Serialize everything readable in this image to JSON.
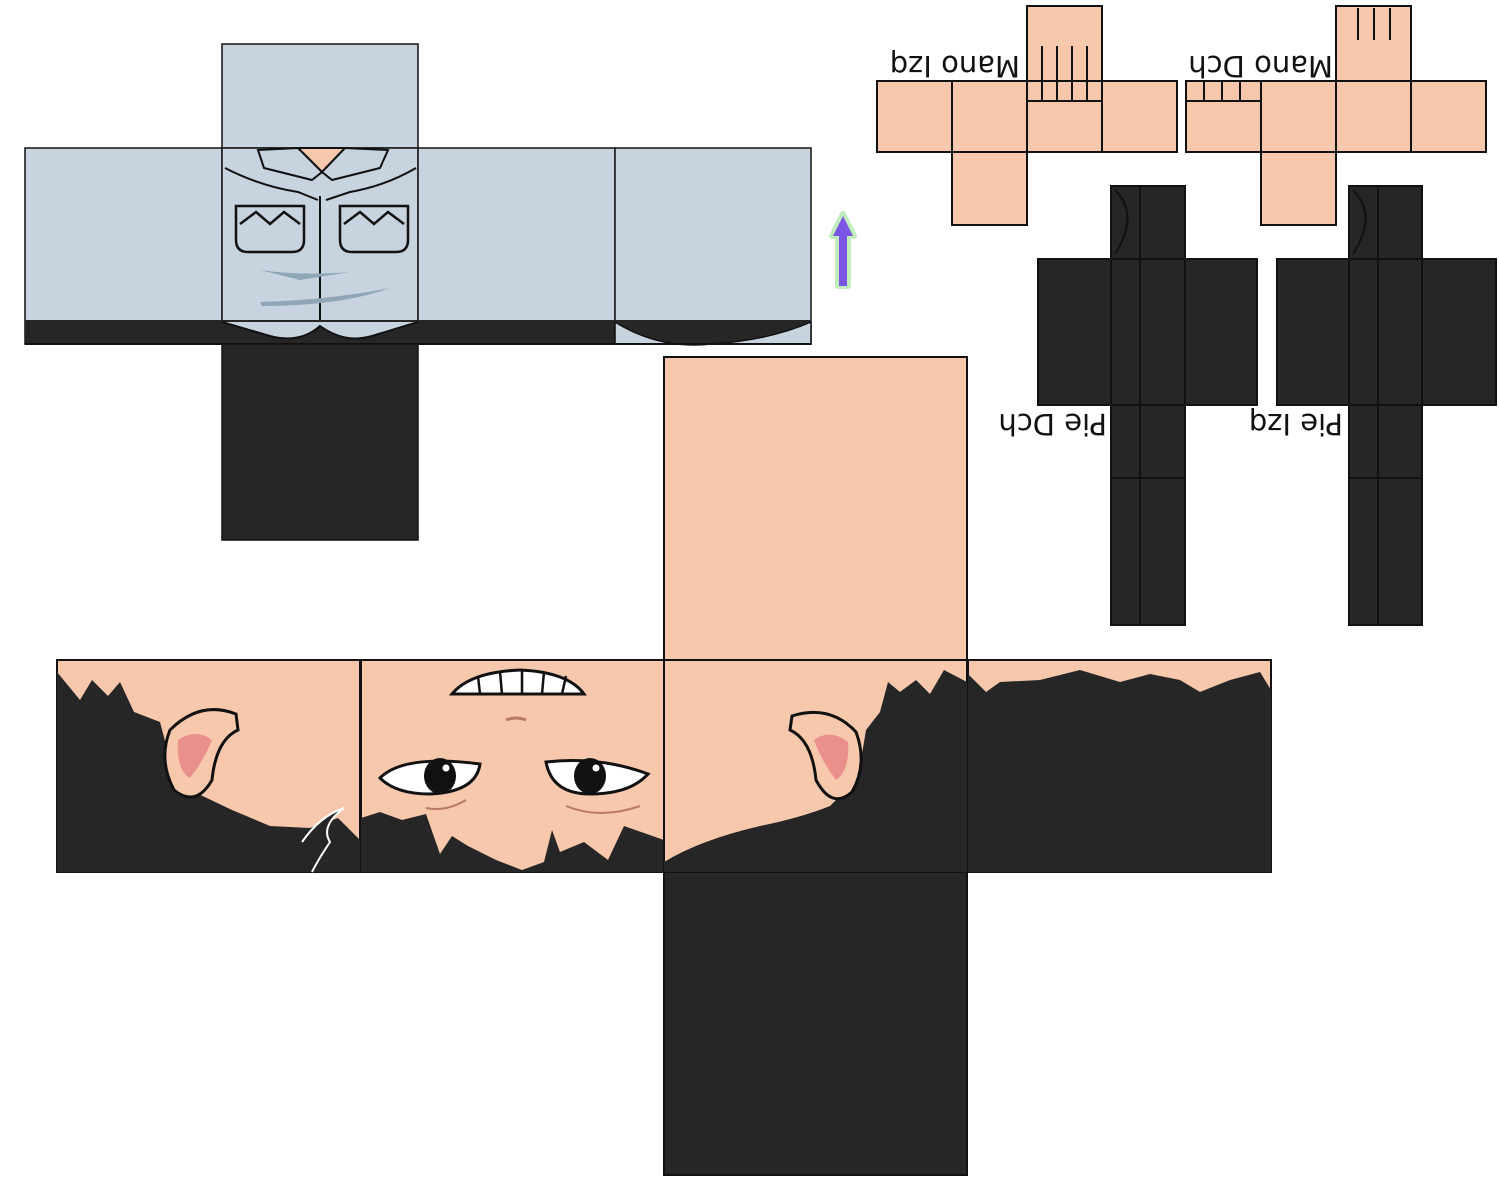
{
  "labels": {
    "left_hand": "Mano Izq",
    "right_hand": "Mano Dch",
    "right_foot": "Pie Dch",
    "left_foot": "Pie Izq"
  },
  "colors": {
    "shirt": "#c7d3df",
    "shirt_shadow": "#a9bccb",
    "dark": "#262626",
    "skin": "#f8c8ac",
    "outline": "#111111",
    "ear_inner": "#e98f8c",
    "arrow": "#7b55e6",
    "arrow_glow": "#a8e6a0",
    "background": "#ffffff"
  },
  "icons": {
    "up_arrow": "up-arrow-icon"
  }
}
